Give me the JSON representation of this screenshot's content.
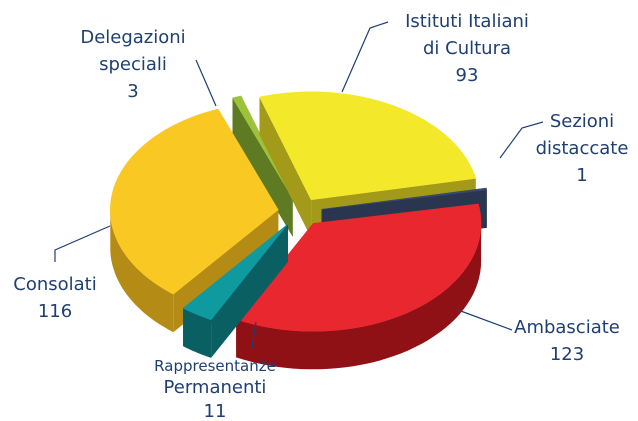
{
  "chart_data": {
    "type": "pie3d",
    "categories": [
      "Delegazioni speciali",
      "Istituti Italiani di Cultura",
      "Sezioni distaccate",
      "Ambasciate",
      "Rappresentanze Permanenti",
      "Consolati"
    ],
    "values": [
      3,
      93,
      1,
      123,
      11,
      116
    ],
    "colors": [
      "#9dc33b",
      "#f4e82b",
      "#3b4a6b",
      "#e8272f",
      "#0f9aa0",
      "#f9c823"
    ],
    "side_colors": [
      "#5e7a22",
      "#a39a1a",
      "#2a3550",
      "#8f1015",
      "#0a5f63",
      "#b48c15"
    ]
  }
}
